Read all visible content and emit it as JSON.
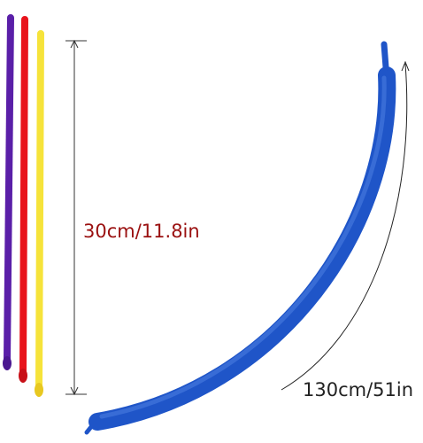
{
  "labels": {
    "uninflated": "30cm/11.8in",
    "inflated": "130cm/51in"
  }
}
